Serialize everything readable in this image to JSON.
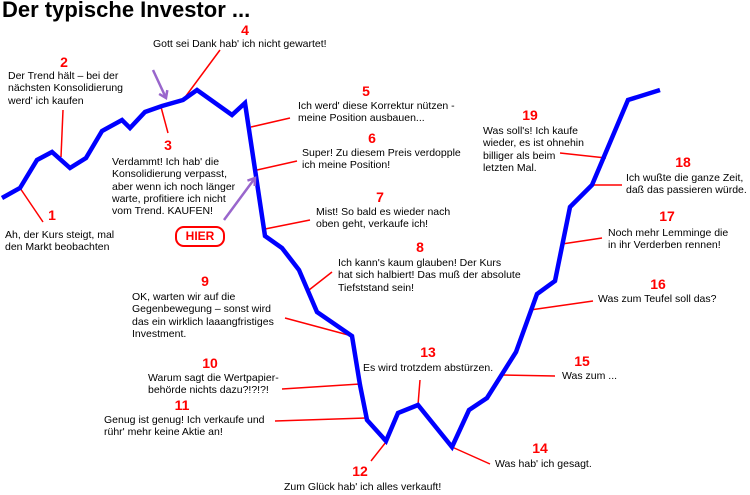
{
  "title": "Der typische Investor ...",
  "hier_label": "HIER",
  "colors": {
    "line": "#0000ff",
    "leader": "#ff0000",
    "number": "#ff0000",
    "arrow": "#9966cc"
  },
  "annotations": [
    {
      "num": "1",
      "lines": [
        "Ah, der Kurs steigt, mal",
        "den Markt beobachten"
      ]
    },
    {
      "num": "2",
      "lines": [
        "Der Trend hält – bei der",
        "nächsten Konsolidierung",
        "werd' ich kaufen"
      ]
    },
    {
      "num": "3",
      "lines": [
        "Verdammt! Ich hab' die",
        "Konsolidierung verpasst,",
        "aber wenn ich noch länger",
        "warte, profitiere ich nicht",
        "vom Trend. KAUFEN!"
      ]
    },
    {
      "num": "4",
      "lines": [
        "Gott sei Dank hab' ich nicht gewartet!"
      ]
    },
    {
      "num": "5",
      "lines": [
        "Ich werd' diese Korrektur nützen -",
        "meine Position ausbauen..."
      ]
    },
    {
      "num": "6",
      "lines": [
        "Super! Zu diesem Preis verdopple",
        "ich meine Position!"
      ]
    },
    {
      "num": "7",
      "lines": [
        "Mist! So bald es wieder nach",
        "oben geht, verkaufe ich!"
      ]
    },
    {
      "num": "8",
      "lines": [
        "Ich kann's kaum glauben! Der Kurs",
        "hat sich halbiert! Das muß der absolute",
        "Tiefststand sein!"
      ]
    },
    {
      "num": "9",
      "lines": [
        "OK, warten wir auf die",
        "Gegenbewegung – sonst wird",
        "das ein wirklich laaangfristiges",
        "Investment."
      ]
    },
    {
      "num": "10",
      "lines": [
        "Warum sagt die Wertpapier-",
        "behörde nichts dazu?!?!?!"
      ]
    },
    {
      "num": "11",
      "lines": [
        "Genug ist genug! Ich verkaufe und",
        "rühr' mehr keine Aktie an!"
      ]
    },
    {
      "num": "12",
      "lines": [
        "Zum Glück hab' ich alles verkauft!"
      ]
    },
    {
      "num": "13",
      "lines": [
        "Es wird trotzdem abstürzen."
      ]
    },
    {
      "num": "14",
      "lines": [
        "Was hab' ich gesagt."
      ]
    },
    {
      "num": "15",
      "lines": [
        "Was zum ..."
      ]
    },
    {
      "num": "16",
      "lines": [
        "Was zum Teufel soll das?"
      ]
    },
    {
      "num": "17",
      "lines": [
        "Noch mehr Lemminge die",
        "in ihr Verderben rennen!"
      ]
    },
    {
      "num": "18",
      "lines": [
        "Ich wußte die ganze Zeit,",
        "daß das passieren würde."
      ]
    },
    {
      "num": "19",
      "lines": [
        "Was soll's! Ich kaufe",
        "wieder, es ist ohnehin",
        "billiger als beim",
        "letzten Mal."
      ]
    }
  ]
}
